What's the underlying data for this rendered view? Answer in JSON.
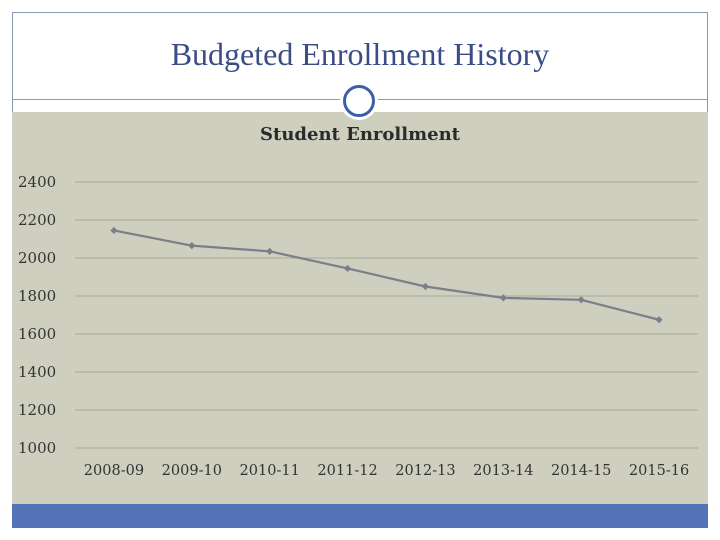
{
  "slide": {
    "title": "Budgeted Enrollment History",
    "colors": {
      "title": "#3b4d86",
      "chart_background": "#cfcfbf",
      "footer": "#5573b8",
      "line": "#7b7f8a"
    }
  },
  "chart_data": {
    "type": "line",
    "title": "Student Enrollment",
    "xlabel": "",
    "ylabel": "",
    "categories": [
      "2008-09",
      "2009-10",
      "2010-11",
      "2011-12",
      "2012-13",
      "2013-14",
      "2014-15",
      "2015-16"
    ],
    "series": [
      {
        "values": [
          2145,
          2065,
          2035,
          1945,
          1850,
          1790,
          1780,
          1675
        ]
      }
    ],
    "ylim": [
      1000,
      2400
    ],
    "yticks": [
      2400,
      2200,
      2000,
      1800,
      1600,
      1400,
      1200,
      1000
    ],
    "grid": true,
    "legend": "none"
  }
}
